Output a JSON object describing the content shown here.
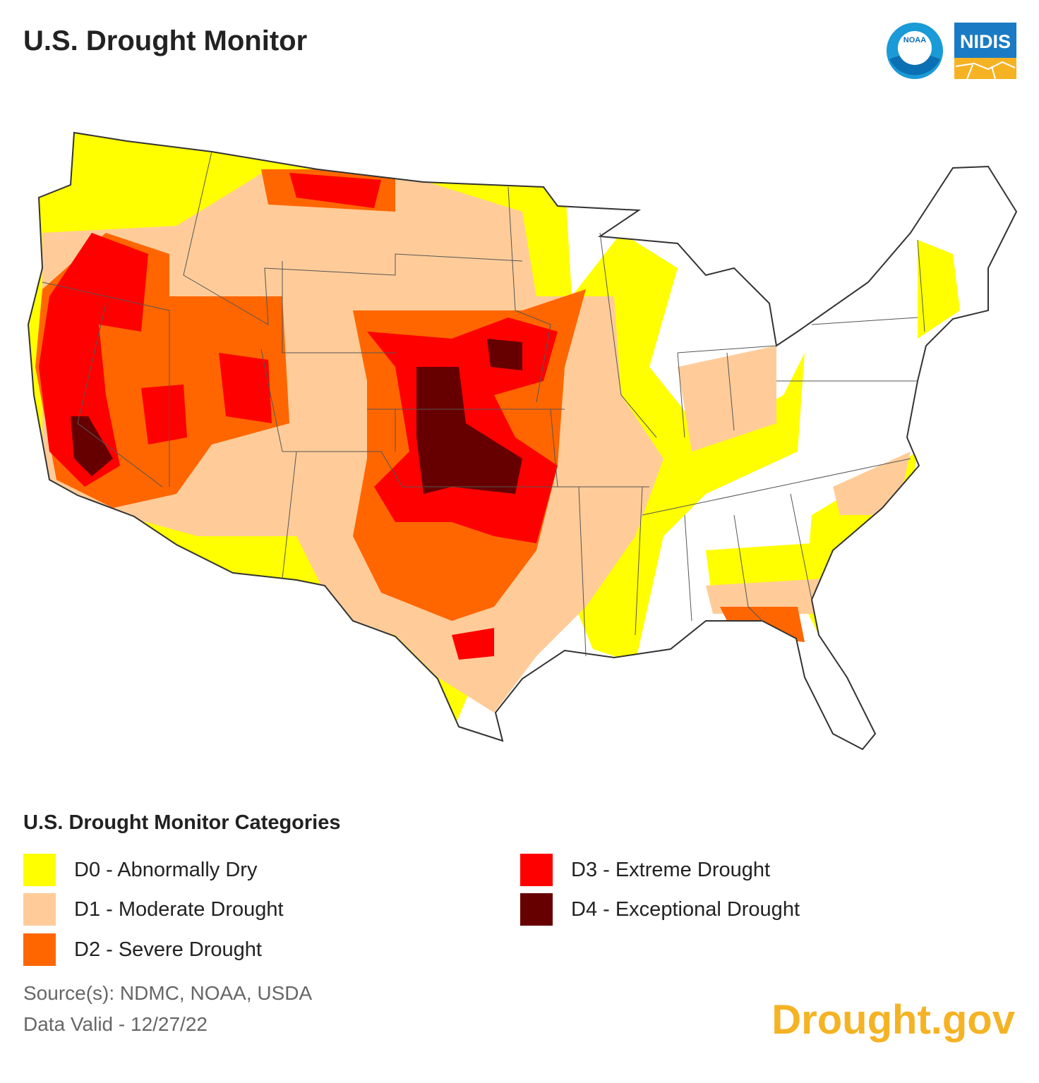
{
  "header": {
    "title": "U.S. Drought Monitor",
    "logos": [
      "NOAA",
      "NIDIS"
    ]
  },
  "legend": {
    "title": "U.S. Drought Monitor Categories",
    "items": [
      {
        "label": "D0 - Abnormally Dry",
        "color": "#ffff00"
      },
      {
        "label": "D1 - Moderate Drought",
        "color": "#ffcc99"
      },
      {
        "label": "D2 - Severe Drought",
        "color": "#ff6600"
      },
      {
        "label": "D3 - Extreme Drought",
        "color": "#ff0000"
      },
      {
        "label": "D4 - Exceptional Drought",
        "color": "#660000"
      }
    ]
  },
  "footer": {
    "sources": "Source(s): NDMC, NOAA, USDA",
    "date": "Data Valid - 12/27/22",
    "brand": "Drought.gov"
  }
}
